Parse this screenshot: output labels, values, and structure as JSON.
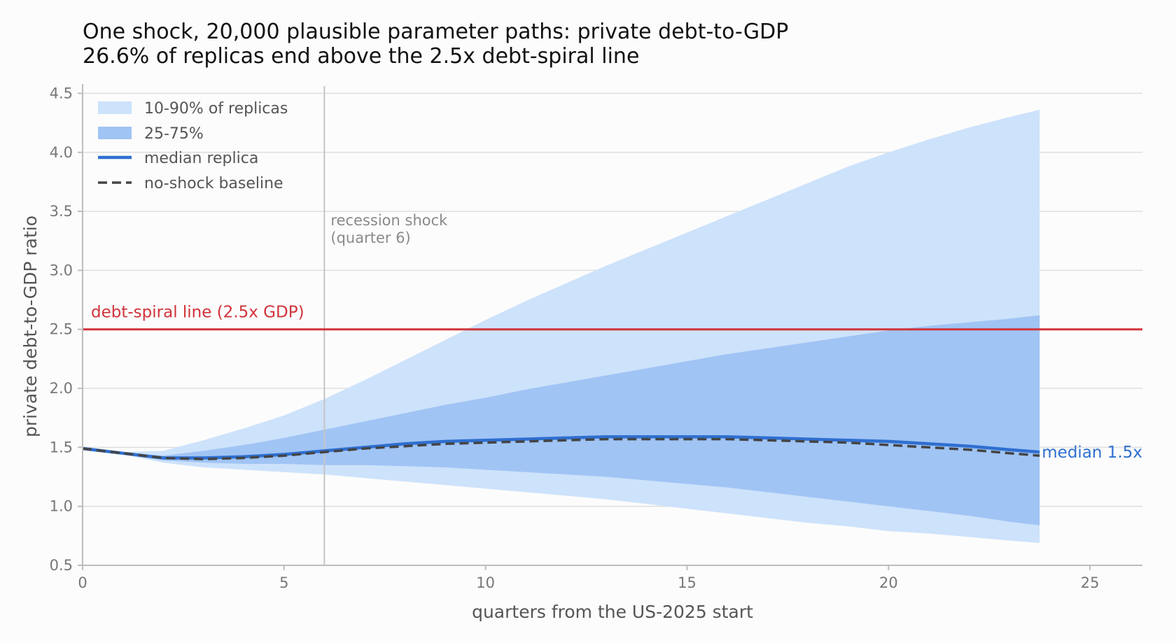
{
  "title_line1": "One shock, 20,000 plausible parameter paths: private debt-to-GDP",
  "title_line2": "26.6% of replicas end above the 2.5x debt-spiral line",
  "chart_data": {
    "type": "area",
    "xlabel": "quarters from the US-2025 start",
    "ylabel": "private debt-to-GDP ratio",
    "xlim": [
      0,
      26.3
    ],
    "ylim": [
      0.5,
      4.55
    ],
    "xticks": [
      0,
      5,
      10,
      15,
      20,
      25
    ],
    "yticks": [
      0.5,
      1.0,
      1.5,
      2.0,
      2.5,
      3.0,
      3.5,
      4.0,
      4.5
    ],
    "grid": "horizontal",
    "legend_position": "top-left",
    "x": [
      0,
      1,
      2,
      3,
      4,
      5,
      6,
      7,
      8,
      9,
      10,
      11,
      12,
      13,
      14,
      15,
      16,
      17,
      18,
      19,
      20,
      21,
      22,
      23,
      23.75
    ],
    "series": [
      {
        "name": "10-90% of replicas",
        "kind": "band",
        "color": "#cde2fb",
        "lower": [
          1.49,
          1.44,
          1.37,
          1.33,
          1.31,
          1.29,
          1.27,
          1.24,
          1.21,
          1.18,
          1.15,
          1.12,
          1.09,
          1.06,
          1.02,
          0.98,
          0.94,
          0.9,
          0.86,
          0.83,
          0.79,
          0.77,
          0.74,
          0.71,
          0.69
        ],
        "upper": [
          1.49,
          1.46,
          1.47,
          1.56,
          1.66,
          1.77,
          1.91,
          2.07,
          2.24,
          2.41,
          2.58,
          2.74,
          2.89,
          3.04,
          3.18,
          3.32,
          3.46,
          3.6,
          3.74,
          3.88,
          4.0,
          4.11,
          4.21,
          4.3,
          4.36
        ]
      },
      {
        "name": "25-75%",
        "kind": "band",
        "color": "#a0c4f4",
        "lower": [
          1.49,
          1.44,
          1.39,
          1.37,
          1.36,
          1.36,
          1.35,
          1.35,
          1.34,
          1.33,
          1.31,
          1.29,
          1.27,
          1.25,
          1.22,
          1.19,
          1.16,
          1.12,
          1.08,
          1.04,
          1.0,
          0.96,
          0.92,
          0.87,
          0.84
        ],
        "upper": [
          1.49,
          1.45,
          1.43,
          1.47,
          1.52,
          1.58,
          1.65,
          1.72,
          1.79,
          1.86,
          1.92,
          1.99,
          2.05,
          2.11,
          2.17,
          2.23,
          2.29,
          2.34,
          2.39,
          2.44,
          2.49,
          2.53,
          2.56,
          2.59,
          2.62
        ]
      },
      {
        "name": "median replica",
        "kind": "line",
        "color": "#2f6fd0",
        "values": [
          1.49,
          1.45,
          1.41,
          1.41,
          1.42,
          1.44,
          1.47,
          1.5,
          1.53,
          1.55,
          1.56,
          1.57,
          1.58,
          1.59,
          1.59,
          1.59,
          1.59,
          1.58,
          1.57,
          1.56,
          1.55,
          1.53,
          1.51,
          1.48,
          1.46
        ]
      },
      {
        "name": "no-shock baseline",
        "kind": "dashed",
        "color": "#444444",
        "values": [
          1.49,
          1.45,
          1.41,
          1.4,
          1.41,
          1.43,
          1.46,
          1.49,
          1.51,
          1.53,
          1.54,
          1.55,
          1.56,
          1.57,
          1.57,
          1.57,
          1.57,
          1.56,
          1.55,
          1.54,
          1.52,
          1.5,
          1.48,
          1.45,
          1.43
        ]
      }
    ],
    "threshold": {
      "y": 2.5,
      "label": "debt-spiral line (2.5x GDP)",
      "color": "#d0343a"
    },
    "event": {
      "x": 6,
      "label_line1": "recession shock",
      "label_line2": "(quarter 6)"
    },
    "end_label": "median 1.5x"
  }
}
